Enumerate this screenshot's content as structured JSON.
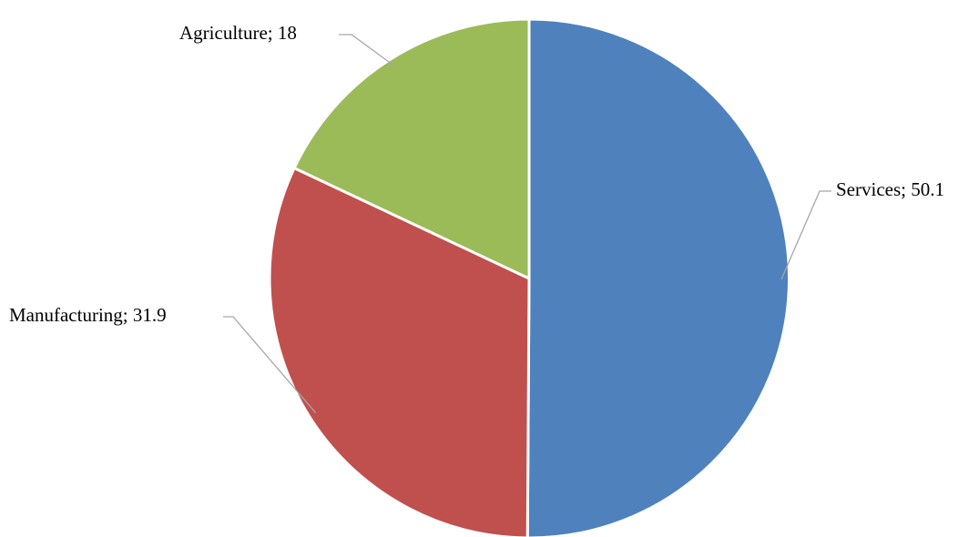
{
  "chart_data": {
    "type": "pie",
    "title": "",
    "categories": [
      "Services",
      "Manufacturing",
      "Agriculture"
    ],
    "values": [
      50.1,
      31.9,
      18
    ],
    "colors": [
      "#4f81bd",
      "#c0504d",
      "#9bbb59"
    ],
    "labels": [
      "Services; 50.1",
      "Manufacturing; 31.9",
      "Agriculture; 18"
    ],
    "start_angle_deg": 0,
    "direction": "clockwise",
    "legend": "none"
  }
}
